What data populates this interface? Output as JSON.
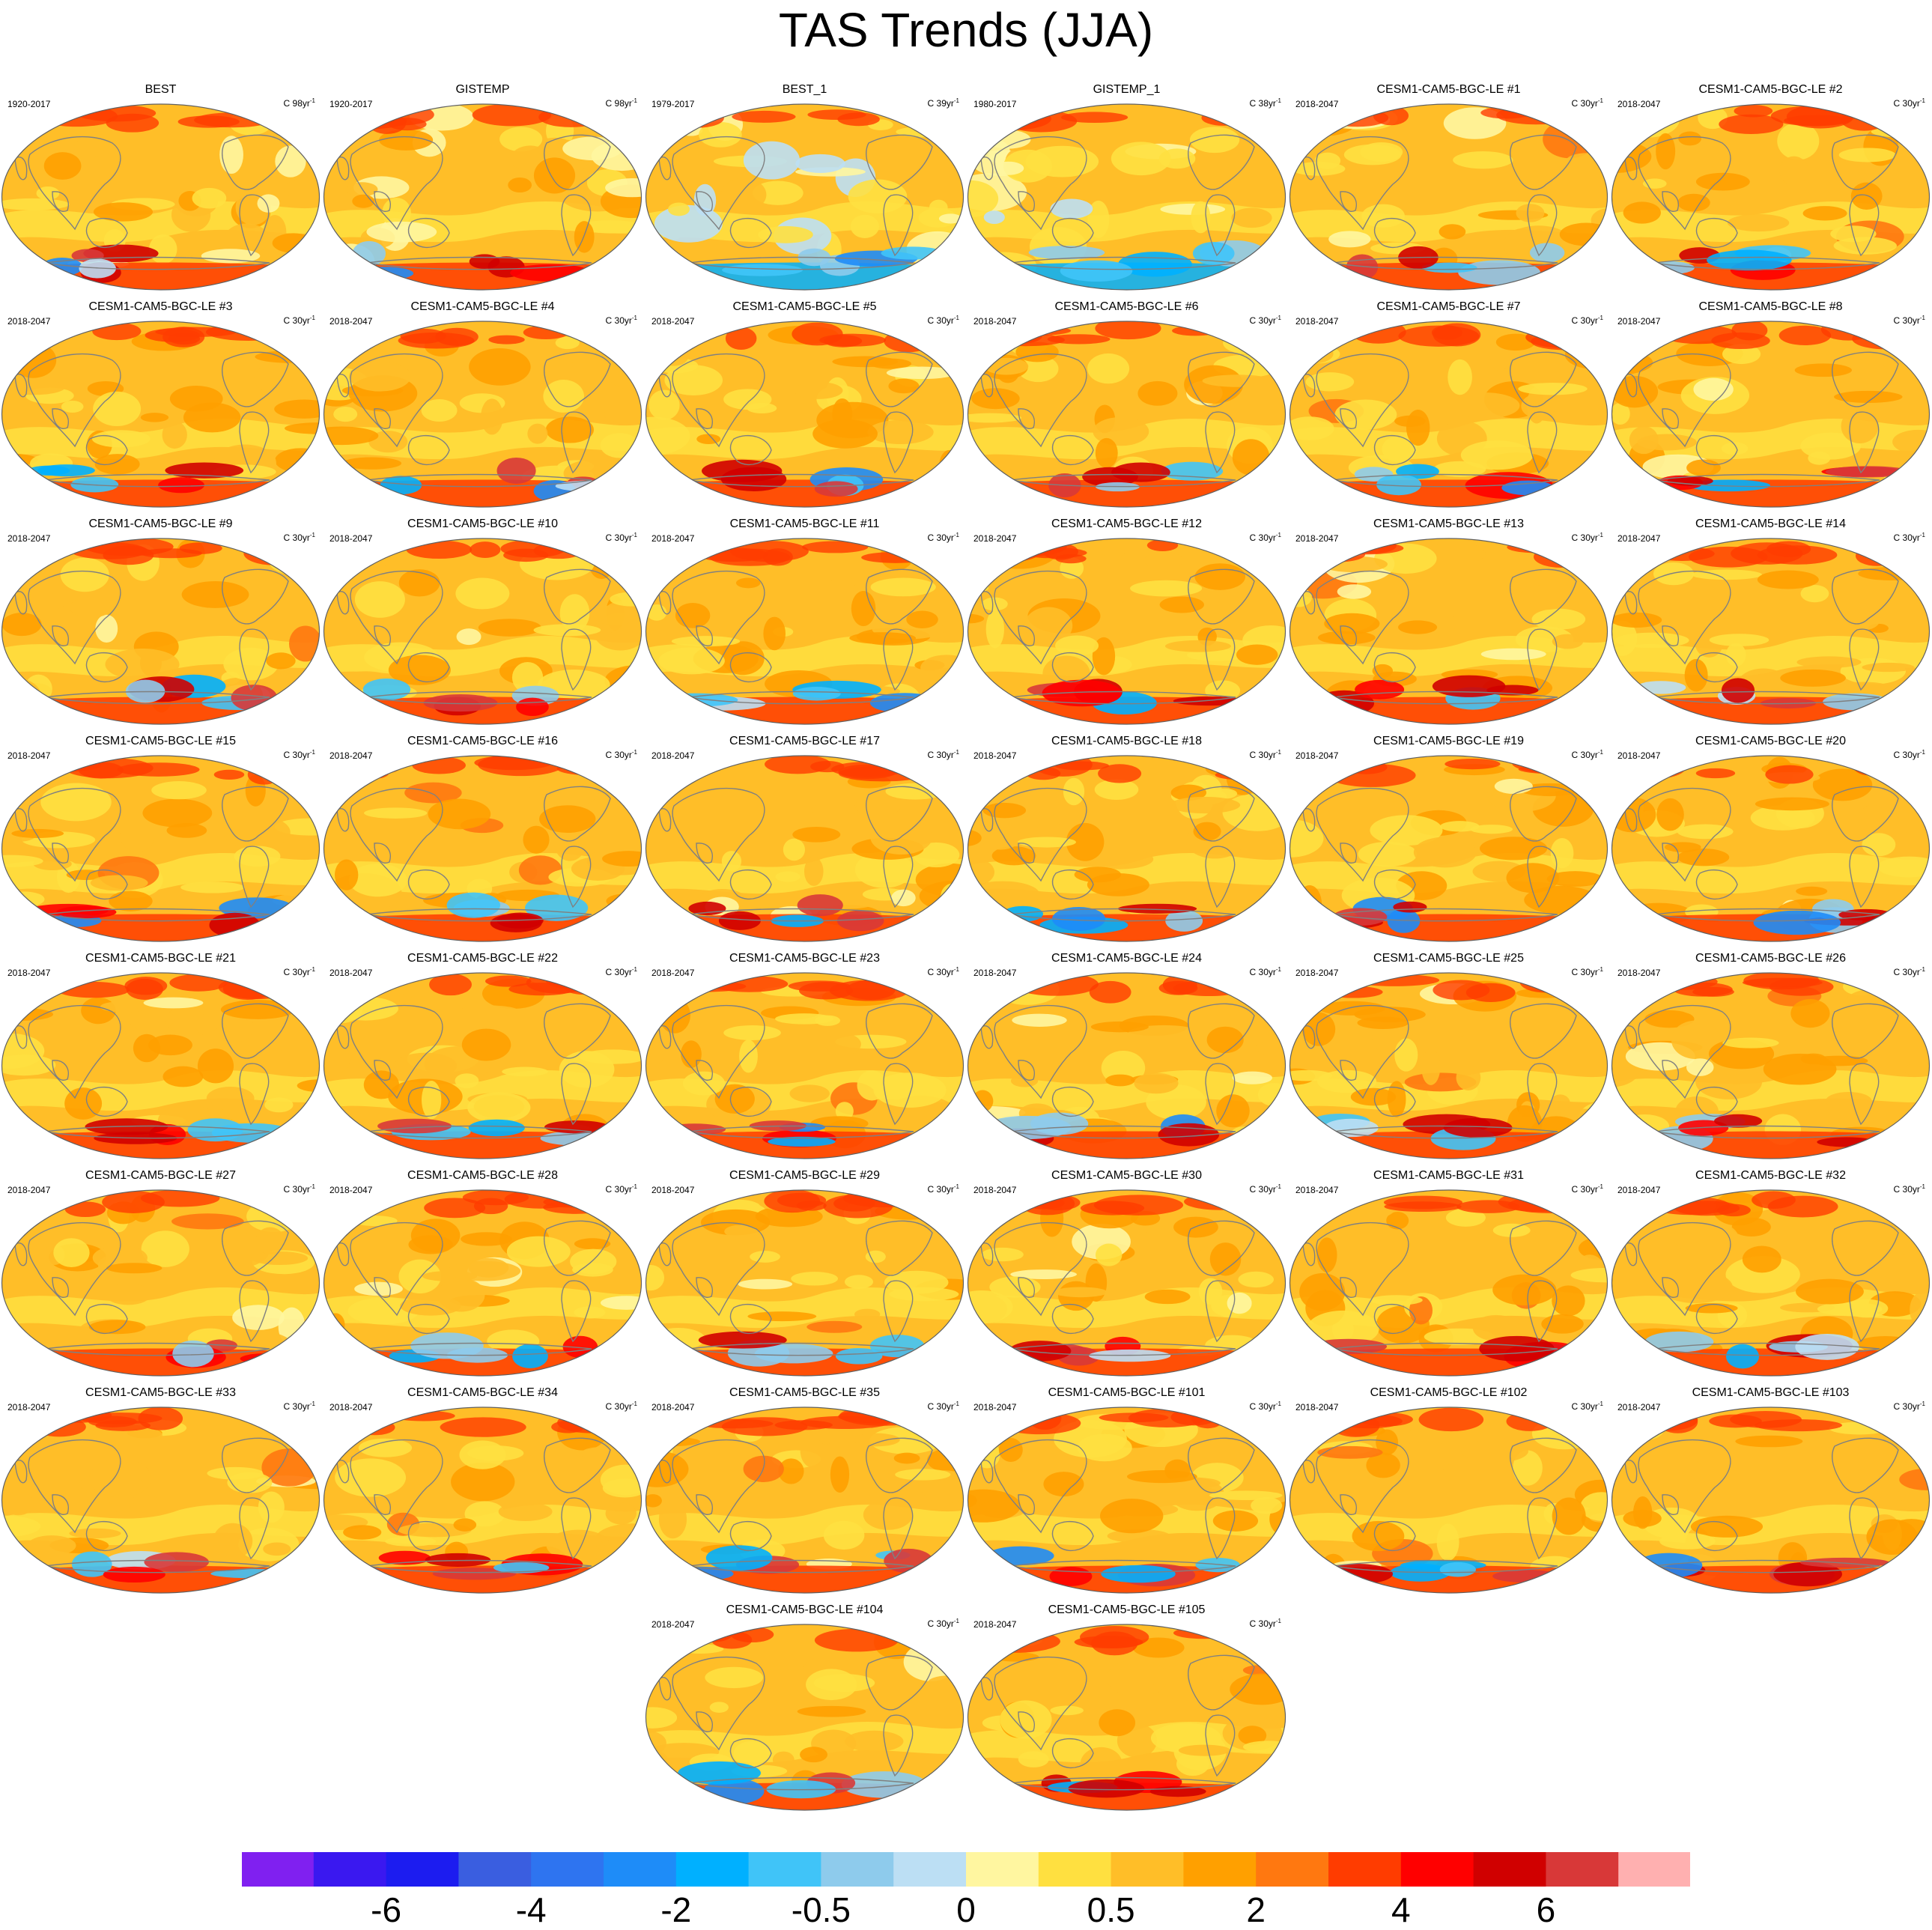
{
  "title": "TAS Trends (JJA)",
  "panels": [
    {
      "title": "BEST",
      "period": "1920-2017",
      "unit": "C 98yr",
      "unit_sup": "-1",
      "bias": 0.0,
      "seed": 11
    },
    {
      "title": "GISTEMP",
      "period": "1920-2017",
      "unit": "C 98yr",
      "unit_sup": "-1",
      "bias": 0.0,
      "seed": 12
    },
    {
      "title": "BEST_1",
      "period": "1979-2017",
      "unit": "C 39yr",
      "unit_sup": "-1",
      "bias": -1.2,
      "seed": 13
    },
    {
      "title": "GISTEMP_1",
      "period": "1980-2017",
      "unit": "C 38yr",
      "unit_sup": "-1",
      "bias": -1.2,
      "seed": 14
    },
    {
      "title": "CESM1-CAM5-BGC-LE #1",
      "period": "2018-2047",
      "unit": "C 30yr",
      "unit_sup": "-1",
      "bias": 0.4,
      "seed": 21
    },
    {
      "title": "CESM1-CAM5-BGC-LE #2",
      "period": "2018-2047",
      "unit": "C 30yr",
      "unit_sup": "-1",
      "bias": 0.4,
      "seed": 22
    },
    {
      "title": "CESM1-CAM5-BGC-LE #3",
      "period": "2018-2047",
      "unit": "C 30yr",
      "unit_sup": "-1",
      "bias": 0.4,
      "seed": 23
    },
    {
      "title": "CESM1-CAM5-BGC-LE #4",
      "period": "2018-2047",
      "unit": "C 30yr",
      "unit_sup": "-1",
      "bias": 0.4,
      "seed": 24
    },
    {
      "title": "CESM1-CAM5-BGC-LE #5",
      "period": "2018-2047",
      "unit": "C 30yr",
      "unit_sup": "-1",
      "bias": 0.4,
      "seed": 25
    },
    {
      "title": "CESM1-CAM5-BGC-LE #6",
      "period": "2018-2047",
      "unit": "C 30yr",
      "unit_sup": "-1",
      "bias": 0.4,
      "seed": 26
    },
    {
      "title": "CESM1-CAM5-BGC-LE #7",
      "period": "2018-2047",
      "unit": "C 30yr",
      "unit_sup": "-1",
      "bias": 0.4,
      "seed": 27
    },
    {
      "title": "CESM1-CAM5-BGC-LE #8",
      "period": "2018-2047",
      "unit": "C 30yr",
      "unit_sup": "-1",
      "bias": 0.4,
      "seed": 28
    },
    {
      "title": "CESM1-CAM5-BGC-LE #9",
      "period": "2018-2047",
      "unit": "C 30yr",
      "unit_sup": "-1",
      "bias": 0.4,
      "seed": 29
    },
    {
      "title": "CESM1-CAM5-BGC-LE #10",
      "period": "2018-2047",
      "unit": "C 30yr",
      "unit_sup": "-1",
      "bias": 0.4,
      "seed": 30
    },
    {
      "title": "CESM1-CAM5-BGC-LE #11",
      "period": "2018-2047",
      "unit": "C 30yr",
      "unit_sup": "-1",
      "bias": 0.4,
      "seed": 31
    },
    {
      "title": "CESM1-CAM5-BGC-LE #12",
      "period": "2018-2047",
      "unit": "C 30yr",
      "unit_sup": "-1",
      "bias": 0.4,
      "seed": 32
    },
    {
      "title": "CESM1-CAM5-BGC-LE #13",
      "period": "2018-2047",
      "unit": "C 30yr",
      "unit_sup": "-1",
      "bias": 0.4,
      "seed": 33
    },
    {
      "title": "CESM1-CAM5-BGC-LE #14",
      "period": "2018-2047",
      "unit": "C 30yr",
      "unit_sup": "-1",
      "bias": 0.4,
      "seed": 34
    },
    {
      "title": "CESM1-CAM5-BGC-LE #15",
      "period": "2018-2047",
      "unit": "C 30yr",
      "unit_sup": "-1",
      "bias": 0.4,
      "seed": 35
    },
    {
      "title": "CESM1-CAM5-BGC-LE #16",
      "period": "2018-2047",
      "unit": "C 30yr",
      "unit_sup": "-1",
      "bias": 0.4,
      "seed": 36
    },
    {
      "title": "CESM1-CAM5-BGC-LE #17",
      "period": "2018-2047",
      "unit": "C 30yr",
      "unit_sup": "-1",
      "bias": 0.4,
      "seed": 37
    },
    {
      "title": "CESM1-CAM5-BGC-LE #18",
      "period": "2018-2047",
      "unit": "C 30yr",
      "unit_sup": "-1",
      "bias": 0.4,
      "seed": 38
    },
    {
      "title": "CESM1-CAM5-BGC-LE #19",
      "period": "2018-2047",
      "unit": "C 30yr",
      "unit_sup": "-1",
      "bias": 0.4,
      "seed": 39
    },
    {
      "title": "CESM1-CAM5-BGC-LE #20",
      "period": "2018-2047",
      "unit": "C 30yr",
      "unit_sup": "-1",
      "bias": 0.4,
      "seed": 40
    },
    {
      "title": "CESM1-CAM5-BGC-LE #21",
      "period": "2018-2047",
      "unit": "C 30yr",
      "unit_sup": "-1",
      "bias": 0.4,
      "seed": 41
    },
    {
      "title": "CESM1-CAM5-BGC-LE #22",
      "period": "2018-2047",
      "unit": "C 30yr",
      "unit_sup": "-1",
      "bias": 0.4,
      "seed": 42
    },
    {
      "title": "CESM1-CAM5-BGC-LE #23",
      "period": "2018-2047",
      "unit": "C 30yr",
      "unit_sup": "-1",
      "bias": 0.4,
      "seed": 43
    },
    {
      "title": "CESM1-CAM5-BGC-LE #24",
      "period": "2018-2047",
      "unit": "C 30yr",
      "unit_sup": "-1",
      "bias": 0.4,
      "seed": 44
    },
    {
      "title": "CESM1-CAM5-BGC-LE #25",
      "period": "2018-2047",
      "unit": "C 30yr",
      "unit_sup": "-1",
      "bias": 0.4,
      "seed": 45
    },
    {
      "title": "CESM1-CAM5-BGC-LE #26",
      "period": "2018-2047",
      "unit": "C 30yr",
      "unit_sup": "-1",
      "bias": 0.4,
      "seed": 46
    },
    {
      "title": "CESM1-CAM5-BGC-LE #27",
      "period": "2018-2047",
      "unit": "C 30yr",
      "unit_sup": "-1",
      "bias": 0.4,
      "seed": 47
    },
    {
      "title": "CESM1-CAM5-BGC-LE #28",
      "period": "2018-2047",
      "unit": "C 30yr",
      "unit_sup": "-1",
      "bias": 0.4,
      "seed": 48
    },
    {
      "title": "CESM1-CAM5-BGC-LE #29",
      "period": "2018-2047",
      "unit": "C 30yr",
      "unit_sup": "-1",
      "bias": 0.4,
      "seed": 49
    },
    {
      "title": "CESM1-CAM5-BGC-LE #30",
      "period": "2018-2047",
      "unit": "C 30yr",
      "unit_sup": "-1",
      "bias": 0.4,
      "seed": 50
    },
    {
      "title": "CESM1-CAM5-BGC-LE #31",
      "period": "2018-2047",
      "unit": "C 30yr",
      "unit_sup": "-1",
      "bias": 0.4,
      "seed": 51
    },
    {
      "title": "CESM1-CAM5-BGC-LE #32",
      "period": "2018-2047",
      "unit": "C 30yr",
      "unit_sup": "-1",
      "bias": 0.4,
      "seed": 52
    },
    {
      "title": "CESM1-CAM5-BGC-LE #33",
      "period": "2018-2047",
      "unit": "C 30yr",
      "unit_sup": "-1",
      "bias": 0.4,
      "seed": 53
    },
    {
      "title": "CESM1-CAM5-BGC-LE #34",
      "period": "2018-2047",
      "unit": "C 30yr",
      "unit_sup": "-1",
      "bias": 0.4,
      "seed": 54
    },
    {
      "title": "CESM1-CAM5-BGC-LE #35",
      "period": "2018-2047",
      "unit": "C 30yr",
      "unit_sup": "-1",
      "bias": 0.4,
      "seed": 55
    },
    {
      "title": "CESM1-CAM5-BGC-LE #101",
      "period": "2018-2047",
      "unit": "C 30yr",
      "unit_sup": "-1",
      "bias": 0.4,
      "seed": 56
    },
    {
      "title": "CESM1-CAM5-BGC-LE #102",
      "period": "2018-2047",
      "unit": "C 30yr",
      "unit_sup": "-1",
      "bias": 0.4,
      "seed": 57
    },
    {
      "title": "CESM1-CAM5-BGC-LE #103",
      "period": "2018-2047",
      "unit": "C 30yr",
      "unit_sup": "-1",
      "bias": 0.4,
      "seed": 58
    },
    {
      "title": "CESM1-CAM5-BGC-LE #104",
      "period": "2018-2047",
      "unit": "C 30yr",
      "unit_sup": "-1",
      "bias": 0.4,
      "seed": 59
    },
    {
      "title": "CESM1-CAM5-BGC-LE #105",
      "period": "2018-2047",
      "unit": "C 30yr",
      "unit_sup": "-1",
      "bias": 0.4,
      "seed": 60
    }
  ],
  "colorbar": {
    "colors": [
      "#8020f0",
      "#3a18f0",
      "#1c1cf0",
      "#3a5ee0",
      "#2e74f0",
      "#1e8cf8",
      "#00b0ff",
      "#40c4f8",
      "#8ecbec",
      "#bcdff4",
      "#fff6a0",
      "#ffe040",
      "#ffbe28",
      "#ffa000",
      "#ff7810",
      "#ff3c00",
      "#ff0000",
      "#d00000",
      "#d83838",
      "#ffb0b0"
    ],
    "labels": [
      "-6",
      "-4",
      "-2",
      "-0.5",
      "0",
      "0.5",
      "2",
      "4",
      "6"
    ]
  },
  "map_style": {
    "ocean_base": "#ffbe28",
    "coast": "#808080",
    "edge": "#606060",
    "light": "#ffe040",
    "strong": "#ffa000",
    "hot": "#ff3c00"
  }
}
